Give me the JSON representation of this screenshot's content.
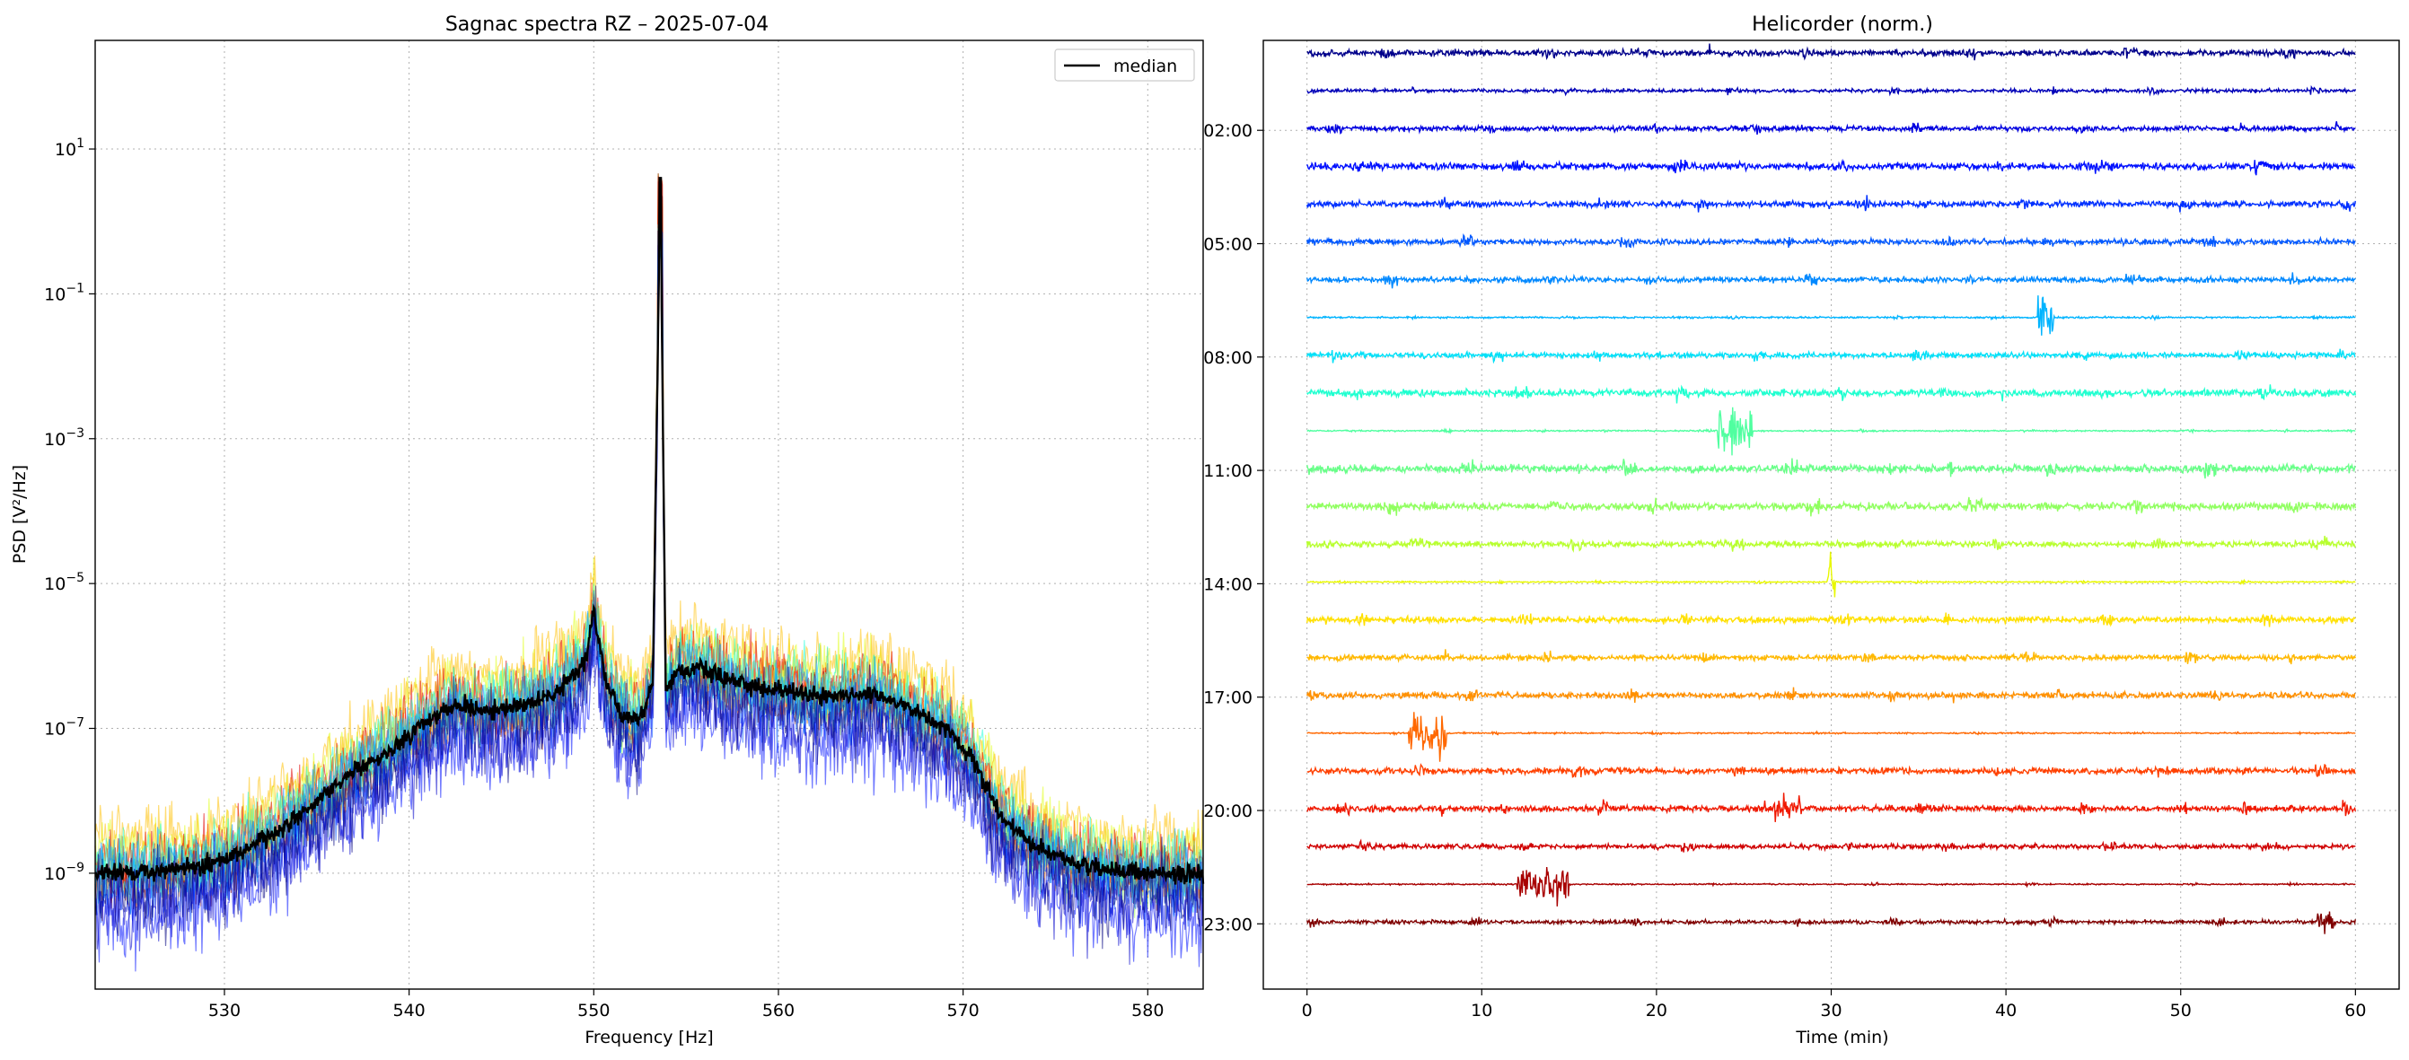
{
  "chart_data": [
    {
      "type": "line",
      "title": "Sagnac spectra RZ – 2025-07-04",
      "xlabel": "Frequency [Hz]",
      "ylabel": "PSD [V²/Hz]",
      "xlim": [
        523,
        583
      ],
      "ylim_log10": [
        -10.6,
        2.5
      ],
      "yscale": "log",
      "grid": true,
      "legend_position": "top-right",
      "x_ticks": [
        530,
        540,
        550,
        560,
        570,
        580
      ],
      "x_tick_labels": [
        "530",
        "540",
        "550",
        "560",
        "570",
        "580"
      ],
      "y_ticks_log10": [
        -9,
        -7,
        -5,
        -3,
        -1,
        1
      ],
      "y_tick_labels": [
        {
          "base": "10",
          "exp": "−9"
        },
        {
          "base": "10",
          "exp": "−7"
        },
        {
          "base": "10",
          "exp": "−5"
        },
        {
          "base": "10",
          "exp": "−3"
        },
        {
          "base": "10",
          "exp": "−1"
        },
        {
          "base": "10",
          "exp": "1"
        }
      ],
      "series": [
        {
          "name": "median",
          "color": "#000000",
          "x": [
            523,
            525,
            527,
            529,
            531,
            533,
            535,
            537,
            539,
            541,
            542.5,
            544,
            546,
            548,
            549.5,
            550,
            550.6,
            551.5,
            552.5,
            553.2,
            553.6,
            553.9,
            554.5,
            555.5,
            557,
            559,
            561,
            563,
            565,
            567,
            569,
            570.5,
            572,
            574,
            576,
            578,
            580,
            583
          ],
          "log10_y": [
            -9.0,
            -9.0,
            -8.95,
            -8.9,
            -8.7,
            -8.4,
            -8.0,
            -7.6,
            -7.3,
            -6.9,
            -6.65,
            -6.75,
            -6.7,
            -6.5,
            -6.1,
            -5.4,
            -6.3,
            -6.8,
            -6.9,
            -6.4,
            0.6,
            -6.5,
            -6.2,
            -6.15,
            -6.3,
            -6.45,
            -6.5,
            -6.6,
            -6.5,
            -6.7,
            -7.0,
            -7.4,
            -8.2,
            -8.65,
            -8.85,
            -8.95,
            -9.0,
            -9.0
          ]
        }
      ],
      "background_traces": {
        "count": 24,
        "palette": "jet",
        "colors": [
          "#000080",
          "#0000c8",
          "#0010ff",
          "#0050ff",
          "#0090ff",
          "#00d0ff",
          "#20ffd8",
          "#60ff98",
          "#a0ff58",
          "#e0ff18",
          "#ffc000",
          "#ff8000",
          "#ff4000",
          "#e00000",
          "#800000"
        ]
      }
    },
    {
      "type": "line",
      "title": "Helicorder (norm.)",
      "xlabel": "Time (min)",
      "ylabel": "",
      "xlim": [
        -2.5,
        62.5
      ],
      "x_ticks": [
        0,
        10,
        20,
        30,
        40,
        50,
        60
      ],
      "x_tick_labels": [
        "0",
        "10",
        "20",
        "30",
        "40",
        "50",
        "60"
      ],
      "grid": true,
      "y_ticks_hour": [
        2,
        5,
        8,
        11,
        14,
        17,
        20,
        23
      ],
      "y_tick_labels": [
        "02:00",
        "05:00",
        "08:00",
        "11:00",
        "14:00",
        "17:00",
        "20:00",
        "23:00"
      ],
      "hours": 24,
      "traces": [
        {
          "hour": 0,
          "color": "#00008b",
          "amp": 0.18
        },
        {
          "hour": 1,
          "color": "#0000b8",
          "amp": 0.1
        },
        {
          "hour": 2,
          "color": "#0000e0",
          "amp": 0.15
        },
        {
          "hour": 3,
          "color": "#0010ff",
          "amp": 0.2
        },
        {
          "hour": 4,
          "color": "#0030ff",
          "amp": 0.18
        },
        {
          "hour": 5,
          "color": "#0058ff",
          "amp": 0.16
        },
        {
          "hour": 6,
          "color": "#0088ff",
          "amp": 0.16
        },
        {
          "hour": 7,
          "color": "#00b4ff",
          "amp": 0.05
        },
        {
          "hour": 8,
          "color": "#00e0f8",
          "amp": 0.16
        },
        {
          "hour": 9,
          "color": "#20ffd0",
          "amp": 0.2
        },
        {
          "hour": 10,
          "color": "#50ffa0",
          "amp": 0.04
        },
        {
          "hour": 11,
          "color": "#68ff88",
          "amp": 0.22
        },
        {
          "hour": 12,
          "color": "#90ff60",
          "amp": 0.22
        },
        {
          "hour": 13,
          "color": "#b8ff30",
          "amp": 0.18
        },
        {
          "hour": 14,
          "color": "#e8f800",
          "amp": 0.04
        },
        {
          "hour": 15,
          "color": "#ffe000",
          "amp": 0.18
        },
        {
          "hour": 16,
          "color": "#ffb800",
          "amp": 0.16
        },
        {
          "hour": 17,
          "color": "#ff9000",
          "amp": 0.18
        },
        {
          "hour": 18,
          "color": "#ff6800",
          "amp": 0.04
        },
        {
          "hour": 19,
          "color": "#ff4000",
          "amp": 0.18
        },
        {
          "hour": 20,
          "color": "#f01800",
          "amp": 0.18
        },
        {
          "hour": 21,
          "color": "#d00000",
          "amp": 0.14
        },
        {
          "hour": 22,
          "color": "#a80000",
          "amp": 0.04
        },
        {
          "hour": 23,
          "color": "#800000",
          "amp": 0.12
        }
      ]
    }
  ]
}
